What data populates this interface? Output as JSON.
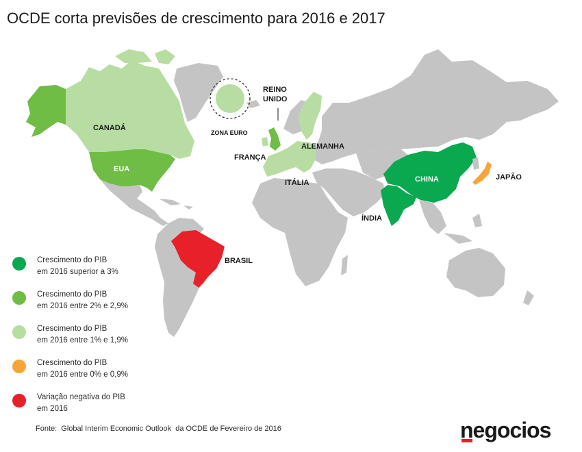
{
  "title": "OCDE corta previsões de crescimento para 2016 e 2017",
  "colors": {
    "above_3": "#0aa84f",
    "from_2_to_2_9": "#6fbd45",
    "from_1_to_1_9": "#b8dda2",
    "from_0_to_0_9": "#f7a539",
    "negative": "#e8202a",
    "no_data": "#c4c4c4"
  },
  "map": {
    "labels": {
      "canada": "CANADÁ",
      "usa": "EUA",
      "brazil": "BRASIL",
      "uk_line1": "REINO",
      "uk_line2": "UNIDO",
      "euro_zone": "ZONA EURO",
      "france": "FRANÇA",
      "germany": "ALEMANHA",
      "italy": "ITÁLIA",
      "china": "CHINA",
      "india": "ÍNDIA",
      "japan": "JAPÃO"
    }
  },
  "legend": [
    {
      "line1": "Crescimento do PIB",
      "line2": "em 2016 superior a 3%",
      "color": "#0aa84f"
    },
    {
      "line1": "Crescimento do PIB",
      "line2": "em 2016 entre 2% e 2,9%",
      "color": "#6fbd45"
    },
    {
      "line1": "Crescimento do PIB",
      "line2": "em 2016 entre 1% e 1,9%",
      "color": "#b8dda2"
    },
    {
      "line1": "Crescimento do PIB",
      "line2": "em 2016 entre 0% e 0,9%",
      "color": "#f7a539"
    },
    {
      "line1": "Variação negativa do PIB",
      "line2": "em 2016",
      "color": "#e8202a"
    }
  ],
  "source": "Fonte:  Global Interim Economic Outlook  da OCDE de Fevereiro de 2016",
  "logo": "negocios"
}
